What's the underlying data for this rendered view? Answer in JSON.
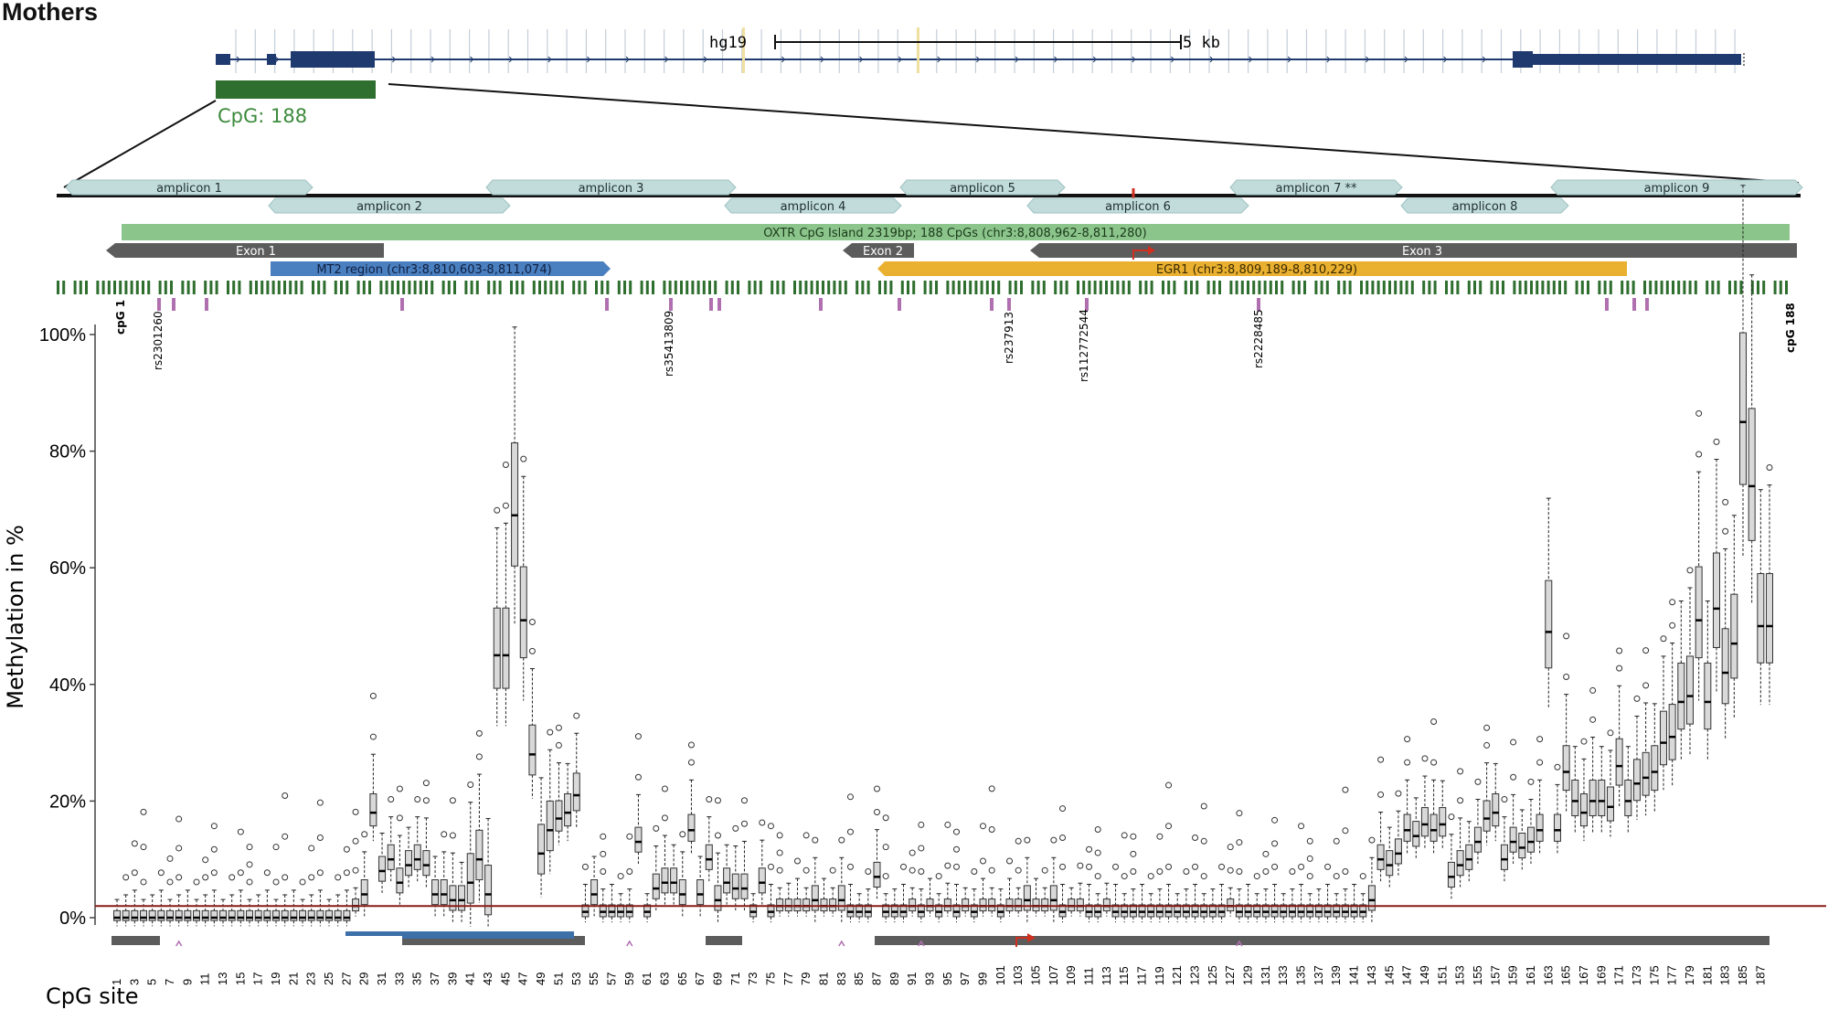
{
  "title": "Mothers",
  "browser": {
    "assembly": "hg19",
    "scale_label": "5 kb",
    "cpg_track_label": "CpG: 188"
  },
  "amplicons": [
    "amplicon 1",
    "amplicon 2",
    "amplicon 3",
    "amplicon 4",
    "amplicon 5",
    "amplicon 6",
    "amplicon 7 **",
    "amplicon 8",
    "amplicon 9"
  ],
  "features": {
    "cpg_island": "OXTR CpG Island 2319bp; 188 CpGs (chr3:8,808,962-8,811,280)",
    "exon1": "Exon 1",
    "exon2": "Exon 2",
    "exon3": "Exon 3",
    "mt2": "MT2 region (chr3:8,810,603-8,811,074)",
    "egr1": "EGR1 (chr3:8,809,189-8,810,229)"
  },
  "snps": [
    "rs2301260",
    "rs35413809",
    "rs237913",
    "rs112772544",
    "rs2228485"
  ],
  "cpg_ends": {
    "first": "cpG 1",
    "last": "cpG 188"
  },
  "colors": {
    "gene_navy": "#1f3a6e",
    "cpg_green": "#2e6e2e",
    "amplicon": "#c2dcdc",
    "cpg_island": "#8cc58c",
    "exon_gray": "#5c5c5c",
    "mt2_blue": "#4a7fc0",
    "egr1_orange": "#eab030",
    "snp_purple": "#b070b0",
    "box_fill": "#d9d9d9",
    "threshold_red": "#8b1a1a",
    "tss_red": "#d03020"
  },
  "chart_data": {
    "type": "box",
    "ylabel": "Methylation in %",
    "xlabel": "CpG site",
    "ylim": [
      -3,
      102
    ],
    "yticks": [
      "0%",
      "20%",
      "40%",
      "60%",
      "80%",
      "100%"
    ],
    "threshold": 2,
    "categories_note": "CpG sites 1..188, tick labels shown on odd sites",
    "medians_pct": [
      0,
      0,
      0,
      0,
      0,
      0,
      0,
      0,
      0,
      0,
      0,
      0,
      0,
      0,
      0,
      0,
      0,
      0,
      0,
      0,
      0,
      0,
      0,
      0,
      0,
      0,
      0,
      2,
      4,
      18,
      8,
      10,
      6,
      9,
      10,
      9,
      4,
      4,
      3,
      3,
      6,
      10,
      4,
      45,
      45,
      69,
      51,
      28,
      11,
      15,
      17,
      18,
      21,
      1,
      4,
      1,
      1,
      1,
      1,
      13,
      1,
      5,
      6,
      6,
      4,
      15,
      4,
      10,
      3,
      6,
      5,
      5,
      1,
      6,
      1,
      2,
      2,
      2,
      2,
      3,
      2,
      2,
      3,
      1,
      1,
      1,
      7,
      1,
      1,
      1,
      2,
      1,
      2,
      1,
      2,
      1,
      2,
      1,
      2,
      2,
      1,
      2,
      2,
      3,
      2,
      2,
      3,
      1,
      2,
      2,
      1,
      1,
      2,
      1,
      1,
      1,
      1,
      1,
      1,
      1,
      1,
      1,
      1,
      1,
      1,
      1,
      2,
      1,
      1,
      1,
      1,
      1,
      1,
      1,
      1,
      1,
      1,
      1,
      1,
      1,
      1,
      1,
      3,
      10,
      9,
      11,
      15,
      14,
      16,
      15,
      16,
      7,
      9,
      10,
      13,
      17,
      18,
      10,
      13,
      12,
      13,
      15,
      49,
      15,
      25,
      20,
      18,
      20,
      20,
      19,
      26,
      20,
      23,
      24,
      25,
      30,
      31,
      37,
      38,
      51,
      37,
      53,
      42,
      47,
      85,
      74,
      50,
      50
    ]
  }
}
